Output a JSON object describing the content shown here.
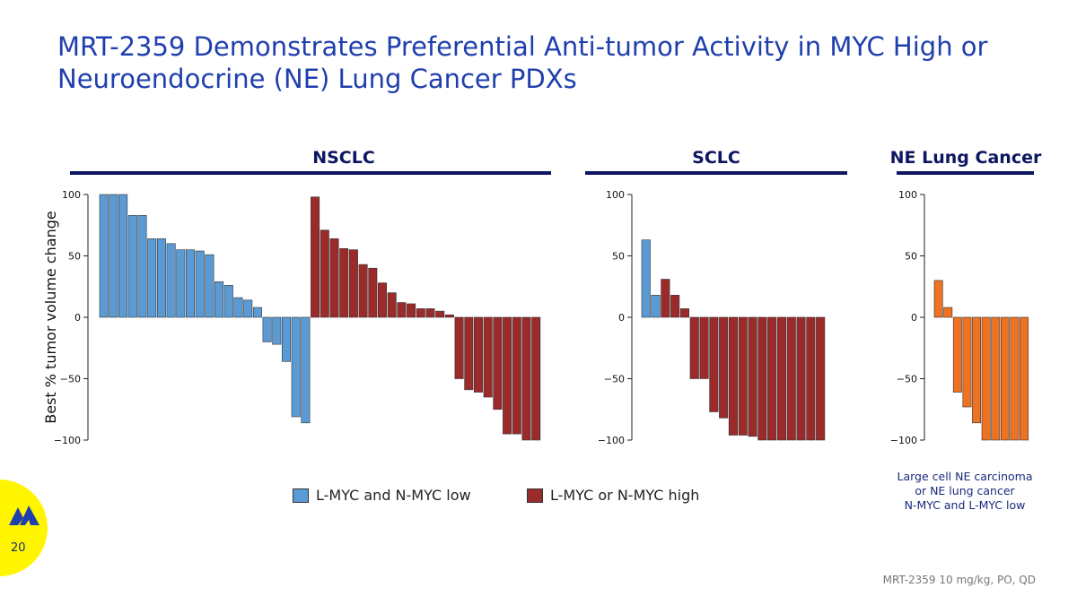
{
  "title_line1": "MRT-2359 Demonstrates Preferential Anti-tumor Activity in MYC High or",
  "title_line2": "Neuroendocrine (NE) Lung Cancer PDXs",
  "panels": {
    "nsclc": "NSCLC",
    "sclc": "SCLC",
    "ne": "NE Lung Cancer"
  },
  "legend": {
    "low": "L-MYC and N-MYC low",
    "high": "L-MYC or N-MYC high"
  },
  "ne_note": [
    "Large cell NE carcinoma",
    "or NE lung cancer",
    "N-MYC and L-MYC low"
  ],
  "page_number": "20",
  "footnote": "MRT-2359 10 mg/kg, PO, QD",
  "colors": {
    "low": "#5b9bd5",
    "high": "#9b2a2a",
    "ne": "#ed7222",
    "title": "#1f3fae",
    "header": "#0d1660",
    "badge": "#fff500"
  },
  "chart_data": [
    {
      "type": "bar",
      "title": "NSCLC",
      "ylabel": "Best % tumor volume change",
      "ylim": [
        -100,
        100
      ],
      "yticks": [
        100,
        50,
        0,
        -50,
        -100
      ],
      "series": [
        {
          "name": "L-MYC and N-MYC low",
          "values": [
            100,
            100,
            100,
            83,
            83,
            64,
            64,
            60,
            55,
            55,
            54,
            51,
            29,
            26,
            16,
            14,
            8,
            -20,
            -22,
            -36,
            -81,
            -86
          ]
        },
        {
          "name": "L-MYC or N-MYC high",
          "values": [
            98,
            71,
            64,
            56,
            55,
            43,
            40,
            28,
            20,
            12,
            11,
            7,
            7,
            5,
            2,
            -50,
            -59,
            -61,
            -65,
            -75,
            -95,
            -95,
            -100,
            -100
          ]
        }
      ]
    },
    {
      "type": "bar",
      "title": "SCLC",
      "ylim": [
        -100,
        100
      ],
      "yticks": [
        100,
        50,
        0,
        -50,
        -100
      ],
      "series": [
        {
          "name": "L-MYC and N-MYC low",
          "values": [
            63,
            18
          ]
        },
        {
          "name": "L-MYC or N-MYC high",
          "values": [
            31,
            18,
            7,
            -50,
            -50,
            -77,
            -82,
            -96,
            -96,
            -97,
            -100,
            -100,
            -100,
            -100,
            -100,
            -100,
            -100
          ]
        }
      ]
    },
    {
      "type": "bar",
      "title": "NE Lung Cancer",
      "ylim": [
        -100,
        100
      ],
      "yticks": [
        100,
        50,
        0,
        -50,
        -100
      ],
      "series": [
        {
          "name": "",
          "values": [
            30,
            8,
            -61,
            -73,
            -86,
            -100,
            -100,
            -100,
            -100,
            -100
          ]
        }
      ]
    }
  ]
}
